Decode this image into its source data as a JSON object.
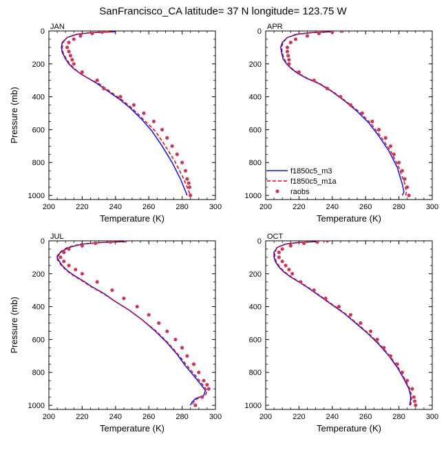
{
  "figure": {
    "title": "SanFrancisco_CA  latitude= 37 N longitude= 123.75 W"
  },
  "legend": {
    "panel_index": 1,
    "entries": [
      {
        "label": "f1850c5_m3",
        "style": "solid",
        "color": "#0000ff"
      },
      {
        "label": "f1850c5_m1a",
        "style": "dashed",
        "color": "#ff0000"
      },
      {
        "label": "raobs",
        "style": "dots",
        "color": "#c8385a"
      }
    ]
  },
  "colors": {
    "m3": "#1010e6",
    "m1a": "#e00000",
    "raobs": "#c8385a"
  },
  "chart_data": [
    {
      "type": "line",
      "panel_label": "JAN",
      "xlabel": "Temperature (K)",
      "ylabel": "Pressure (mb)",
      "xlim": [
        200,
        300
      ],
      "ylim": [
        0,
        1025
      ],
      "y_reversed": true,
      "xticks": [
        200,
        220,
        240,
        260,
        280,
        300
      ],
      "yticks": [
        0,
        200,
        400,
        600,
        800,
        1000
      ],
      "series": [
        {
          "name": "f1850c5_m3",
          "style": "solid",
          "x": [
            240,
            226,
            217,
            211,
            208,
            207.5,
            208,
            210,
            212,
            215,
            219,
            224,
            229,
            236,
            243,
            249,
            256,
            262,
            268,
            274,
            279,
            283
          ],
          "y": [
            5,
            10,
            20,
            40,
            70,
            100,
            130,
            170,
            200,
            230,
            260,
            290,
            320,
            370,
            420,
            470,
            540,
            610,
            700,
            800,
            900,
            1000
          ]
        },
        {
          "name": "f1850c5_m1a",
          "style": "dashed",
          "x": [
            238,
            225,
            216,
            211,
            208.5,
            208,
            208.5,
            210.5,
            212.5,
            215.5,
            219,
            224,
            230,
            237,
            244,
            250,
            257,
            264,
            270,
            276,
            281,
            285
          ],
          "y": [
            5,
            10,
            20,
            40,
            70,
            100,
            130,
            170,
            200,
            230,
            260,
            290,
            320,
            370,
            420,
            470,
            540,
            610,
            700,
            800,
            900,
            1000
          ]
        },
        {
          "name": "raobs",
          "style": "dots",
          "x": [
            235,
            232,
            226,
            219,
            215,
            212,
            211,
            212,
            213,
            214,
            215,
            220,
            229,
            233,
            243,
            251,
            257,
            263,
            268,
            271,
            274,
            277,
            280,
            282,
            283,
            284,
            284.5,
            285
          ],
          "y": [
            0,
            7,
            15,
            30,
            50,
            70,
            100,
            125,
            150,
            175,
            200,
            250,
            300,
            350,
            400,
            450,
            500,
            550,
            600,
            650,
            700,
            750,
            800,
            850,
            900,
            925,
            950,
            1000
          ]
        }
      ]
    },
    {
      "type": "line",
      "panel_label": "APR",
      "xlabel": "Temperature (K)",
      "ylabel": "",
      "xlim": [
        200,
        300
      ],
      "ylim": [
        0,
        1025
      ],
      "y_reversed": true,
      "xticks": [
        200,
        220,
        240,
        260,
        280,
        300
      ],
      "yticks": [
        0,
        200,
        400,
        600,
        800,
        1000
      ],
      "series": [
        {
          "name": "f1850c5_m3",
          "style": "solid",
          "x": [
            240,
            228,
            219,
            213,
            210,
            209,
            209.5,
            210.5,
            212.5,
            215.5,
            219.5,
            225,
            232,
            240,
            248,
            255,
            262,
            268,
            274,
            279,
            282,
            283,
            282
          ],
          "y": [
            5,
            10,
            20,
            40,
            70,
            100,
            130,
            170,
            200,
            230,
            260,
            290,
            320,
            370,
            430,
            490,
            560,
            640,
            730,
            830,
            930,
            980,
            1000
          ]
        },
        {
          "name": "f1850c5_m1a",
          "style": "dashed",
          "x": [
            238,
            227,
            218,
            213,
            210.5,
            209.5,
            210,
            211,
            213,
            216,
            220,
            225.5,
            232.5,
            240.5,
            248.5,
            256,
            263,
            269,
            275,
            280,
            283.5,
            284.5,
            284
          ],
          "y": [
            5,
            10,
            20,
            40,
            70,
            100,
            130,
            170,
            200,
            230,
            260,
            290,
            320,
            370,
            430,
            490,
            560,
            640,
            730,
            830,
            930,
            980,
            1000
          ]
        },
        {
          "name": "raobs",
          "style": "dots",
          "x": [
            246,
            240,
            232,
            225,
            218,
            215,
            213,
            213,
            213.5,
            214,
            214,
            220,
            229,
            237,
            245,
            251,
            258,
            264,
            268,
            272,
            275,
            277,
            280,
            282,
            283.5,
            285,
            286
          ],
          "y": [
            0,
            7,
            15,
            30,
            50,
            70,
            100,
            125,
            150,
            175,
            200,
            250,
            300,
            350,
            400,
            450,
            500,
            550,
            600,
            650,
            700,
            750,
            800,
            850,
            900,
            950,
            1000
          ]
        }
      ]
    },
    {
      "type": "line",
      "panel_label": "JUL",
      "xlabel": "Temperature (K)",
      "ylabel": "Pressure (mb)",
      "xlim": [
        200,
        300
      ],
      "ylim": [
        0,
        1025
      ],
      "y_reversed": true,
      "xticks": [
        200,
        220,
        240,
        260,
        280,
        300
      ],
      "yticks": [
        0,
        200,
        400,
        600,
        800,
        1000
      ],
      "series": [
        {
          "name": "f1850c5_m3",
          "style": "solid",
          "x": [
            245,
            232,
            220,
            212,
            207,
            205,
            206,
            208,
            211,
            215,
            220,
            226,
            233,
            240,
            248,
            256,
            264,
            271,
            277,
            282,
            287,
            291,
            294,
            293,
            288,
            286,
            285
          ],
          "y": [
            5,
            10,
            20,
            40,
            70,
            100,
            120,
            150,
            180,
            210,
            240,
            280,
            320,
            370,
            420,
            480,
            550,
            620,
            690,
            760,
            820,
            870,
            910,
            940,
            960,
            980,
            1000
          ]
        },
        {
          "name": "f1850c5_m1a",
          "style": "dashed",
          "x": [
            244,
            231,
            219,
            211,
            206.5,
            204.5,
            205.5,
            207.5,
            210.5,
            214.5,
            219.5,
            225.5,
            232.5,
            240,
            248,
            256,
            264.5,
            271.5,
            277.5,
            283,
            288,
            292,
            295,
            294,
            289,
            287,
            286
          ],
          "y": [
            5,
            10,
            20,
            40,
            70,
            100,
            120,
            150,
            180,
            210,
            240,
            280,
            320,
            370,
            420,
            480,
            550,
            620,
            690,
            760,
            820,
            870,
            910,
            940,
            960,
            980,
            1000
          ]
        },
        {
          "name": "raobs",
          "style": "dots",
          "x": [
            246,
            237,
            228,
            220,
            212,
            209,
            207,
            209,
            212,
            216,
            220,
            229,
            238,
            245,
            253,
            260,
            266,
            271,
            276,
            280,
            283,
            287,
            290,
            293,
            295,
            296,
            292,
            288
          ],
          "y": [
            0,
            7,
            15,
            30,
            50,
            70,
            100,
            125,
            150,
            175,
            200,
            250,
            300,
            350,
            400,
            450,
            500,
            550,
            600,
            650,
            700,
            750,
            800,
            850,
            875,
            900,
            950,
            1000
          ]
        }
      ]
    },
    {
      "type": "line",
      "panel_label": "OCT",
      "xlabel": "Temperature (K)",
      "ylabel": "",
      "xlim": [
        200,
        300
      ],
      "ylim": [
        0,
        1025
      ],
      "y_reversed": true,
      "xticks": [
        200,
        220,
        240,
        260,
        280,
        300
      ],
      "yticks": [
        0,
        200,
        400,
        600,
        800,
        1000
      ],
      "series": [
        {
          "name": "f1850c5_m3",
          "style": "solid",
          "x": [
            230,
            220,
            212,
            207,
            205,
            205,
            206,
            208,
            211,
            215,
            220,
            226,
            233,
            240,
            247,
            254,
            261,
            268,
            274,
            279,
            283,
            286,
            287,
            287,
            286.5
          ],
          "y": [
            5,
            10,
            20,
            40,
            70,
            100,
            130,
            160,
            190,
            220,
            250,
            290,
            340,
            390,
            440,
            500,
            560,
            630,
            700,
            770,
            840,
            900,
            940,
            970,
            1000
          ]
        },
        {
          "name": "f1850c5_m1a",
          "style": "dashed",
          "x": [
            229,
            219,
            211.5,
            207,
            205.5,
            205.5,
            206.5,
            208.5,
            211.5,
            215.5,
            220.5,
            226.5,
            233.5,
            240.5,
            247.5,
            254.5,
            261.5,
            268.5,
            274.5,
            279.5,
            283.5,
            286.5,
            287.5,
            287.5,
            287
          ],
          "y": [
            5,
            10,
            20,
            40,
            70,
            100,
            130,
            160,
            190,
            220,
            250,
            290,
            340,
            390,
            440,
            500,
            560,
            630,
            700,
            770,
            840,
            900,
            940,
            970,
            1000
          ]
        },
        {
          "name": "raobs",
          "style": "dots",
          "x": [
            237,
            231,
            223,
            215,
            210,
            208,
            208,
            210,
            212,
            214,
            216,
            221,
            229,
            236,
            244,
            251,
            257,
            263,
            267,
            271,
            275,
            279,
            282,
            285,
            288,
            289,
            289.5,
            290
          ],
          "y": [
            0,
            7,
            15,
            30,
            50,
            70,
            100,
            125,
            150,
            175,
            200,
            250,
            300,
            350,
            400,
            450,
            500,
            550,
            600,
            650,
            700,
            750,
            800,
            850,
            900,
            950,
            975,
            1000
          ]
        }
      ]
    }
  ]
}
